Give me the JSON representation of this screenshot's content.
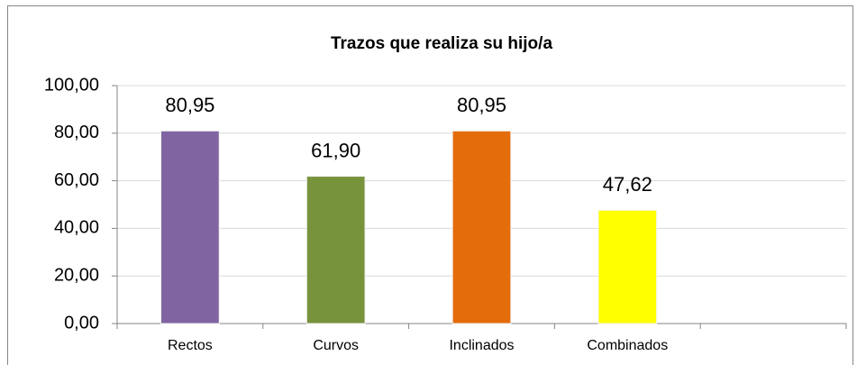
{
  "chart_data": {
    "type": "bar",
    "title": "Trazos que realiza su hijo/a",
    "categories": [
      "Rectos",
      "Curvos",
      "Inclinados",
      "Combinados",
      null
    ],
    "values": [
      80.95,
      61.9,
      80.95,
      47.62,
      null
    ],
    "value_labels": [
      "80,95",
      "61,90",
      "80,95",
      "47,62",
      null
    ],
    "colors": [
      "#8064a2",
      "#77933c",
      "#e46c0a",
      "#ffff00",
      null
    ],
    "ylim": [
      0,
      100
    ],
    "yticks": [
      {
        "value": 0,
        "label": "0,00"
      },
      {
        "value": 20,
        "label": "20,00"
      },
      {
        "value": 40,
        "label": "40,00"
      },
      {
        "value": 60,
        "label": "60,00"
      },
      {
        "value": 80,
        "label": "80,00"
      },
      {
        "value": 100,
        "label": "100,00"
      }
    ],
    "grid": true
  }
}
